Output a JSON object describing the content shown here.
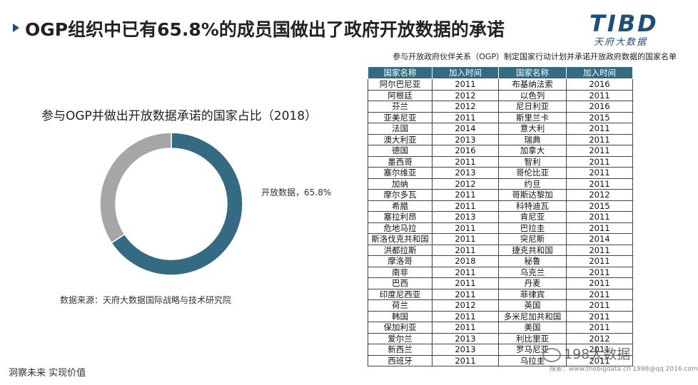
{
  "title": "OGP组织中已有65.8%的成员国做出了政府开放数据的承诺",
  "logo": {
    "text": "TIBD",
    "sub": "天府大数据"
  },
  "subtitle": "参与开放政府伙伴关系（OGP）制定国家行动计划并承诺开放政府数据的国家名单",
  "chart_data": {
    "type": "pie",
    "title": "参与OGP并做出开放数据承诺的国家占比（2018）",
    "slices": [
      {
        "label": "开放数据，65.8%",
        "value": 65.8,
        "color": "#346b83"
      },
      {
        "label": "",
        "value": 34.2,
        "color": "#a6a6a6"
      }
    ]
  },
  "source": "数据来源：天府大数据国际战略与技术研究院",
  "footer": "洞察未来 实现价值",
  "watermark": {
    "text": "198大数据",
    "sub": "搜索：www.thebigdata.cn 1998@qq 2016.com"
  },
  "table": {
    "headers": [
      "国家名称",
      "加入时间",
      "国家名称",
      "加入时间"
    ],
    "rows": [
      [
        "阿尔巴尼亚",
        "2011",
        "布基纳法索",
        "2016"
      ],
      [
        "阿根廷",
        "2012",
        "以色列",
        "2011"
      ],
      [
        "芬兰",
        "2012",
        "尼日利亚",
        "2016"
      ],
      [
        "亚美尼亚",
        "2011",
        "斯里兰卡",
        "2015"
      ],
      [
        "法国",
        "2014",
        "意大利",
        "2011"
      ],
      [
        "澳大利亚",
        "2013",
        "瑞典",
        "2011"
      ],
      [
        "德国",
        "2016",
        "加拿大",
        "2011"
      ],
      [
        "墨西哥",
        "2011",
        "智利",
        "2011"
      ],
      [
        "塞尔维亚",
        "2013",
        "哥伦比亚",
        "2011"
      ],
      [
        "加纳",
        "2012",
        "约旦",
        "2011"
      ],
      [
        "摩尔多瓦",
        "2011",
        "哥斯达黎加",
        "2012"
      ],
      [
        "希腊",
        "2011",
        "科特迪瓦",
        "2015"
      ],
      [
        "塞拉利昂",
        "2013",
        "肯尼亚",
        "2011"
      ],
      [
        "危地马拉",
        "2011",
        "巴拉圭",
        "2011"
      ],
      [
        "斯洛伐克共和国",
        "2011",
        "突尼斯",
        "2014"
      ],
      [
        "洪都拉斯",
        "2011",
        "捷克共和国",
        "2011"
      ],
      [
        "摩洛哥",
        "2018",
        "秘鲁",
        "2011"
      ],
      [
        "南非",
        "2011",
        "乌克兰",
        "2011"
      ],
      [
        "巴西",
        "2011",
        "丹麦",
        "2011"
      ],
      [
        "印度尼西亚",
        "2011",
        "菲律宾",
        "2011"
      ],
      [
        "荷兰",
        "2012",
        "英国",
        "2011"
      ],
      [
        "韩国",
        "2011",
        "多米尼加共和国",
        "2011"
      ],
      [
        "保加利亚",
        "2011",
        "美国",
        "2011"
      ],
      [
        "爱尔兰",
        "2013",
        "利比里亚",
        "2012"
      ],
      [
        "新西兰",
        "2013",
        "罗马尼亚",
        "2011"
      ],
      [
        "西班牙",
        "2011",
        "乌拉圭",
        "2011"
      ]
    ]
  }
}
